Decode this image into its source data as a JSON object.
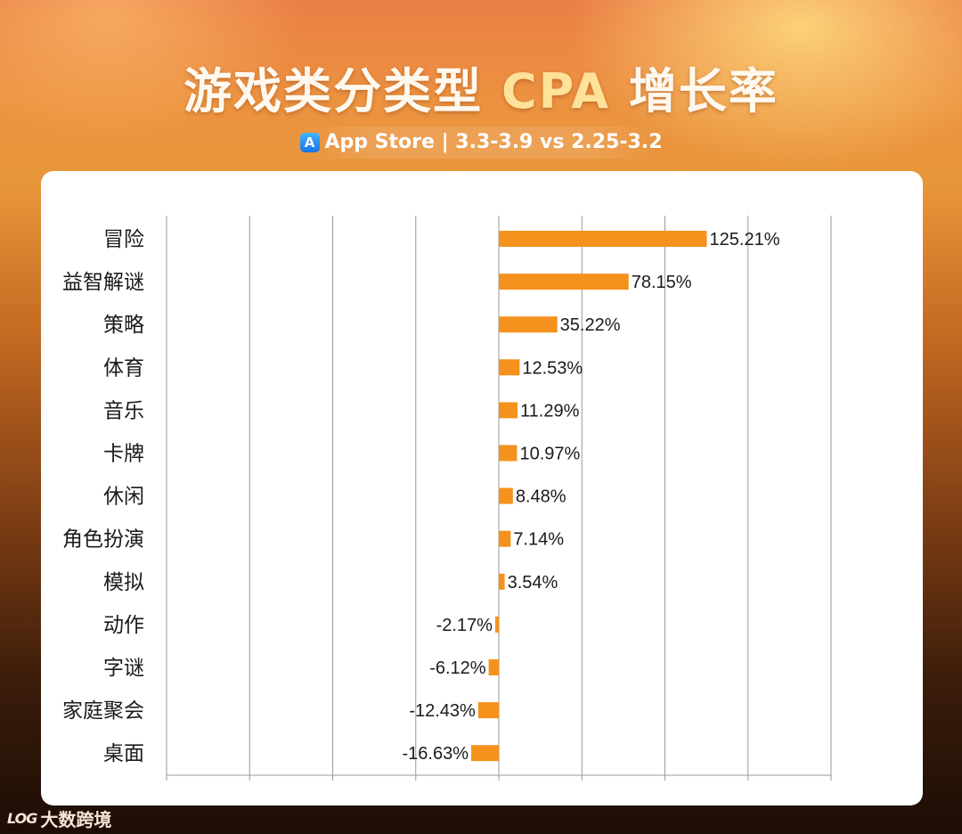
{
  "title": {
    "prefix": "游戏类分类型 ",
    "accent": "CPA",
    "suffix": " 增长率"
  },
  "subtitle": "App Store | 3.3-3.9 vs 2.25-3.2",
  "footer": {
    "logo_mark": "LOG",
    "brand": "大数跨境"
  },
  "colors": {
    "bar": "#f5921e",
    "grid": "#9a9a9a"
  },
  "chart_data": {
    "type": "bar",
    "orientation": "horizontal",
    "title": "游戏类分类型 CPA 增长率",
    "xlim": [
      -200,
      200
    ],
    "grid": true,
    "categories": [
      "冒险",
      "益智解谜",
      "策略",
      "体育",
      "音乐",
      "卡牌",
      "休闲",
      "角色扮演",
      "模拟",
      "动作",
      "字谜",
      "家庭聚会",
      "桌面"
    ],
    "values": [
      125.21,
      78.15,
      35.22,
      12.53,
      11.29,
      10.97,
      8.48,
      7.14,
      3.54,
      -2.17,
      -6.12,
      -12.43,
      -16.63
    ],
    "labels": [
      "125.21%",
      "78.15%",
      "35.22%",
      "12.53%",
      "11.29%",
      "10.97%",
      "8.48%",
      "7.14%",
      "3.54%",
      "-2.17%",
      "-6.12%",
      "-12.43%",
      "-16.63%"
    ],
    "unit": "%"
  }
}
